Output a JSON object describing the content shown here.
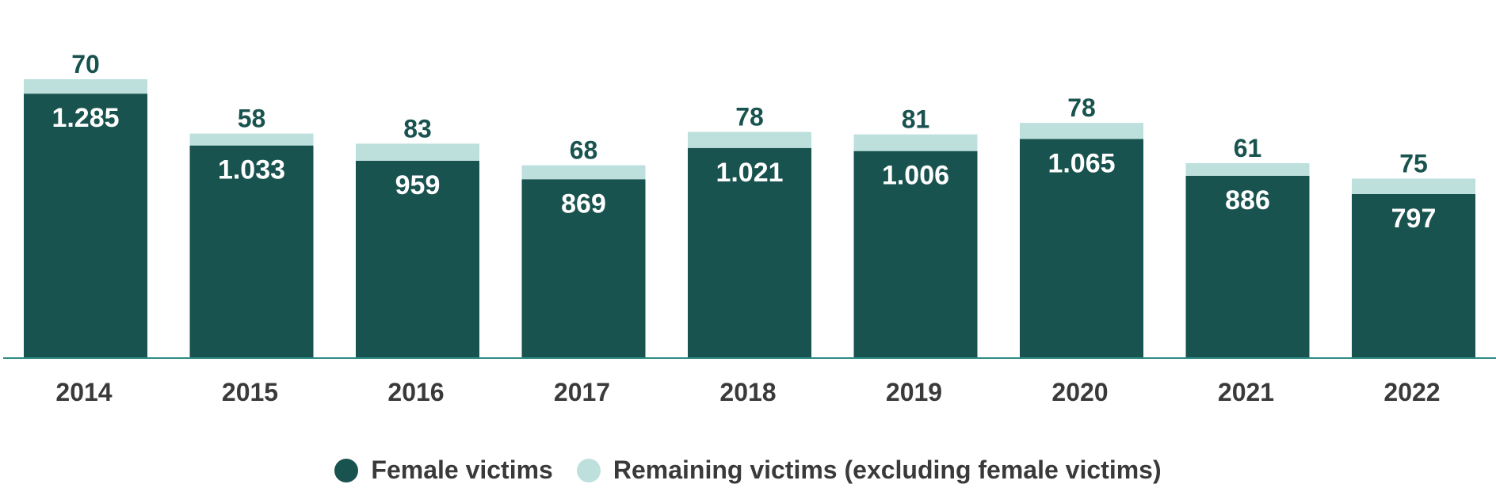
{
  "colors": {
    "female": "#19534f",
    "remaining": "#bde0dd",
    "axis": "#2e8b84",
    "tick_text": "#3a3a3a",
    "top_label": "#19534f"
  },
  "chart_data": {
    "type": "bar",
    "stacked": true,
    "categories": [
      "2014",
      "2015",
      "2016",
      "2017",
      "2018",
      "2019",
      "2020",
      "2021",
      "2022"
    ],
    "series": [
      {
        "name": "Female victims",
        "values": [
          1285,
          1033,
          959,
          869,
          1021,
          1006,
          1065,
          886,
          797
        ],
        "labels": [
          "1.285",
          "1.033",
          "959",
          "869",
          "1.021",
          "1.006",
          "1.065",
          "886",
          "797"
        ]
      },
      {
        "name": "Remaining victims (excluding female victims)",
        "values": [
          70,
          58,
          83,
          68,
          78,
          81,
          78,
          61,
          75
        ],
        "labels": [
          "70",
          "58",
          "83",
          "68",
          "78",
          "81",
          "78",
          "61",
          "75"
        ]
      }
    ],
    "ylim": [
      0,
      1355
    ],
    "grid": false,
    "legend_position": "bottom-center"
  }
}
